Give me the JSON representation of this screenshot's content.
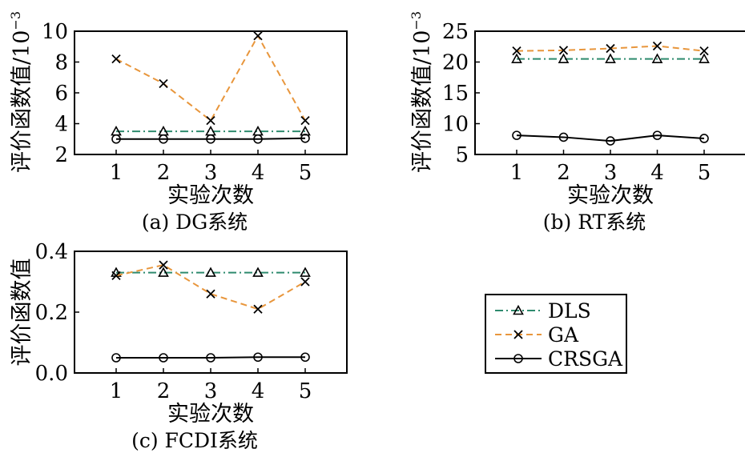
{
  "legend": {
    "entries": [
      {
        "label": "DLS",
        "color": "#2e8b6e",
        "marker": "triangle",
        "dash": "dash-dot"
      },
      {
        "label": "GA",
        "color": "#e8963c",
        "marker": "x",
        "dash": "dashed"
      },
      {
        "label": "CRSGA",
        "color": "#000000",
        "marker": "circle",
        "dash": "solid"
      }
    ]
  },
  "chart_data": [
    {
      "type": "line",
      "caption": "(a) DG系统",
      "xlabel": "实验次数",
      "ylabel": "评价函数值/10",
      "ylabel_exponent": "−3",
      "x": [
        1,
        2,
        3,
        4,
        5
      ],
      "xticks": [
        "1",
        "2",
        "3",
        "4",
        "5"
      ],
      "yticks": [
        "2",
        "4",
        "6",
        "8",
        "10"
      ],
      "ylim": [
        2,
        10
      ],
      "grid": false,
      "series": [
        {
          "name": "DLS",
          "values": [
            3.5,
            3.5,
            3.5,
            3.5,
            3.5
          ]
        },
        {
          "name": "GA",
          "values": [
            8.2,
            6.6,
            4.2,
            9.7,
            4.2
          ]
        },
        {
          "name": "CRSGA",
          "values": [
            3.0,
            3.0,
            3.0,
            3.0,
            3.05
          ]
        }
      ]
    },
    {
      "type": "line",
      "caption": "(b) RT系统",
      "xlabel": "实验次数",
      "ylabel": "评价函数值/10",
      "ylabel_exponent": "−3",
      "x": [
        1,
        2,
        3,
        4,
        5
      ],
      "xticks": [
        "1",
        "2",
        "3",
        "4",
        "5"
      ],
      "yticks": [
        "5",
        "10",
        "15",
        "20",
        "25"
      ],
      "ylim": [
        5,
        25
      ],
      "grid": false,
      "series": [
        {
          "name": "DLS",
          "values": [
            20.5,
            20.5,
            20.5,
            20.5,
            20.5
          ]
        },
        {
          "name": "GA",
          "values": [
            21.8,
            21.9,
            22.2,
            22.6,
            21.8
          ]
        },
        {
          "name": "CRSGA",
          "values": [
            8.1,
            7.8,
            7.2,
            8.1,
            7.6
          ]
        }
      ]
    },
    {
      "type": "line",
      "caption": "(c) FCDI系统",
      "xlabel": "实验次数",
      "ylabel": "评价函数值",
      "ylabel_exponent": "",
      "x": [
        1,
        2,
        3,
        4,
        5
      ],
      "xticks": [
        "1",
        "2",
        "3",
        "4",
        "5"
      ],
      "yticks": [
        "0.0",
        "0.2",
        "0.4"
      ],
      "ylim": [
        0,
        0.4
      ],
      "grid": false,
      "series": [
        {
          "name": "DLS",
          "values": [
            0.33,
            0.33,
            0.33,
            0.33,
            0.33
          ]
        },
        {
          "name": "GA",
          "values": [
            0.32,
            0.355,
            0.26,
            0.21,
            0.3
          ]
        },
        {
          "name": "CRSGA",
          "values": [
            0.05,
            0.05,
            0.05,
            0.052,
            0.052
          ]
        }
      ]
    }
  ]
}
